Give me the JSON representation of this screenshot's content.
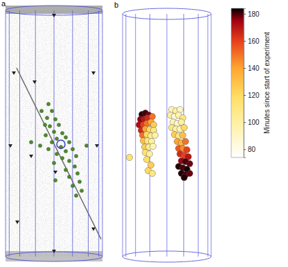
{
  "chart_data": [
    {
      "type": "scatter",
      "title": "a",
      "color": "#4f8a2e",
      "tick_labels": false,
      "xlim": [
        0,
        140
      ],
      "ylim": [
        0,
        355
      ],
      "x": [
        62,
        67,
        60,
        72,
        64,
        77,
        70,
        82,
        58,
        74,
        87,
        67,
        92,
        80,
        62,
        87,
        97,
        74,
        102,
        82,
        92,
        70,
        100,
        87,
        104,
        92,
        107,
        97,
        110,
        102,
        52,
        57,
        50,
        37,
        117,
        72
      ],
      "y": [
        220,
        210,
        200,
        198,
        188,
        190,
        180,
        178,
        175,
        170,
        172,
        165,
        165,
        158,
        155,
        152,
        155,
        148,
        145,
        142,
        138,
        135,
        130,
        125,
        120,
        115,
        108,
        102,
        95,
        88,
        210,
        190,
        160,
        165,
        160,
        110
      ]
    },
    {
      "type": "scatter",
      "title": "b",
      "tick_labels": false,
      "xlim": [
        0,
        128
      ],
      "ylim": [
        0,
        350
      ],
      "x": [
        28,
        33,
        38,
        26,
        31,
        36,
        43,
        24,
        30,
        35,
        41,
        45,
        27,
        33,
        39,
        45,
        29,
        35,
        41,
        47,
        30,
        36,
        42,
        32,
        38,
        44,
        33,
        39,
        35,
        41,
        10,
        37,
        43,
        71,
        77,
        83,
        69,
        75,
        81,
        87,
        73,
        79,
        85,
        71,
        77,
        83,
        89,
        75,
        81,
        87,
        79,
        85,
        91,
        81,
        87,
        93,
        83,
        89,
        95,
        85,
        91,
        97,
        81,
        87,
        93,
        85,
        91,
        97,
        89
      ],
      "y": [
        205,
        207,
        204,
        198,
        198,
        200,
        202,
        190,
        190,
        192,
        194,
        190,
        182,
        184,
        183,
        182,
        175,
        176,
        174,
        175,
        167,
        167,
        166,
        158,
        158,
        159,
        150,
        148,
        140,
        132,
        143,
        124,
        120,
        212,
        210,
        212,
        204,
        202,
        204,
        200,
        194,
        192,
        194,
        186,
        184,
        184,
        186,
        176,
        174,
        175,
        166,
        164,
        166,
        156,
        156,
        154,
        148,
        146,
        144,
        138,
        137,
        134,
        130,
        128,
        126,
        120,
        118,
        120,
        114
      ],
      "values": [
        182,
        180,
        178,
        176,
        170,
        165,
        150,
        172,
        160,
        150,
        140,
        125,
        165,
        140,
        120,
        110,
        150,
        120,
        105,
        100,
        130,
        110,
        100,
        125,
        105,
        95,
        115,
        100,
        118,
        125,
        115,
        120,
        110,
        95,
        100,
        90,
        100,
        88,
        95,
        110,
        95,
        90,
        100,
        110,
        100,
        95,
        120,
        125,
        110,
        130,
        140,
        135,
        150,
        155,
        145,
        160,
        165,
        160,
        170,
        175,
        180,
        178,
        182,
        180,
        183,
        182,
        180,
        178,
        182
      ],
      "colorbar": {
        "label": "Minutes since start of experiment",
        "range": [
          74,
          184
        ],
        "ticks": [
          80,
          100,
          120,
          140,
          160,
          180
        ]
      }
    }
  ]
}
